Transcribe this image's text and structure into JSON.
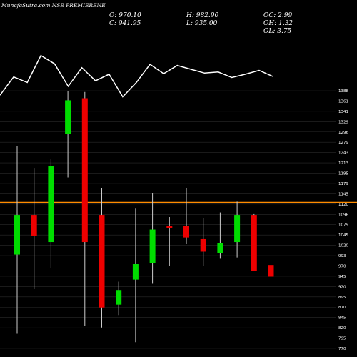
{
  "header": {
    "title": "MunafaSutra.com NSE PREMIERENE"
  },
  "ohlc": {
    "o": "O: 970.10",
    "h": "H: 982.90",
    "oc": "OC: 2.99",
    "c": "C: 941.95",
    "l": "L: 935.00",
    "oh": "OH: 1.32",
    "ol": "OL: 3.75"
  },
  "colors": {
    "background": "#000000",
    "up": "#00dd00",
    "down": "#ee0000",
    "grid": "#2a2a2a",
    "line": "#ffffff",
    "marker": "#ff8c00"
  },
  "chart_data": {
    "type": "candlestick",
    "y_ticks": [
      1388,
      1361,
      1341,
      1329,
      1296,
      1279,
      1243,
      1213,
      1195,
      1179,
      1145,
      1120,
      1096,
      1079,
      1045,
      1020,
      993,
      970,
      945,
      920,
      895,
      870,
      845,
      820,
      795,
      770
    ],
    "ylim": [
      770,
      1388
    ],
    "marker_price": 1120,
    "candles": [
      {
        "open": 995,
        "high": 1255,
        "low": 805,
        "close": 1090
      },
      {
        "open": 1090,
        "high": 1203,
        "low": 912,
        "close": 1040
      },
      {
        "open": 1025,
        "high": 1224,
        "low": 963,
        "close": 1208
      },
      {
        "open": 1285,
        "high": 1388,
        "low": 1180,
        "close": 1365
      },
      {
        "open": 1370,
        "high": 1385,
        "low": 824,
        "close": 1025
      },
      {
        "open": 1090,
        "high": 1155,
        "low": 820,
        "close": 868
      },
      {
        "open": 875,
        "high": 930,
        "low": 850,
        "close": 910
      },
      {
        "open": 935,
        "high": 1105,
        "low": 785,
        "close": 972
      },
      {
        "open": 975,
        "high": 1142,
        "low": 925,
        "close": 1055
      },
      {
        "open": 1063,
        "high": 1085,
        "low": 968,
        "close": 1058
      },
      {
        "open": 1063,
        "high": 1155,
        "low": 1020,
        "close": 1036
      },
      {
        "open": 1032,
        "high": 1082,
        "low": 968,
        "close": 1002
      },
      {
        "open": 998,
        "high": 1096,
        "low": 985,
        "close": 1022
      },
      {
        "open": 1025,
        "high": 1122,
        "low": 988,
        "close": 1090
      },
      {
        "open": 1090,
        "high": 1092,
        "low": 955,
        "close": 955
      },
      {
        "open": 970,
        "high": 983,
        "low": 935,
        "close": 942
      }
    ],
    "line_points": [
      5,
      38,
      28,
      77,
      62,
      21,
      55,
      31,
      43,
      2,
      28,
      61,
      44,
      59,
      52,
      45,
      47,
      37,
      43,
      50,
      39
    ]
  }
}
